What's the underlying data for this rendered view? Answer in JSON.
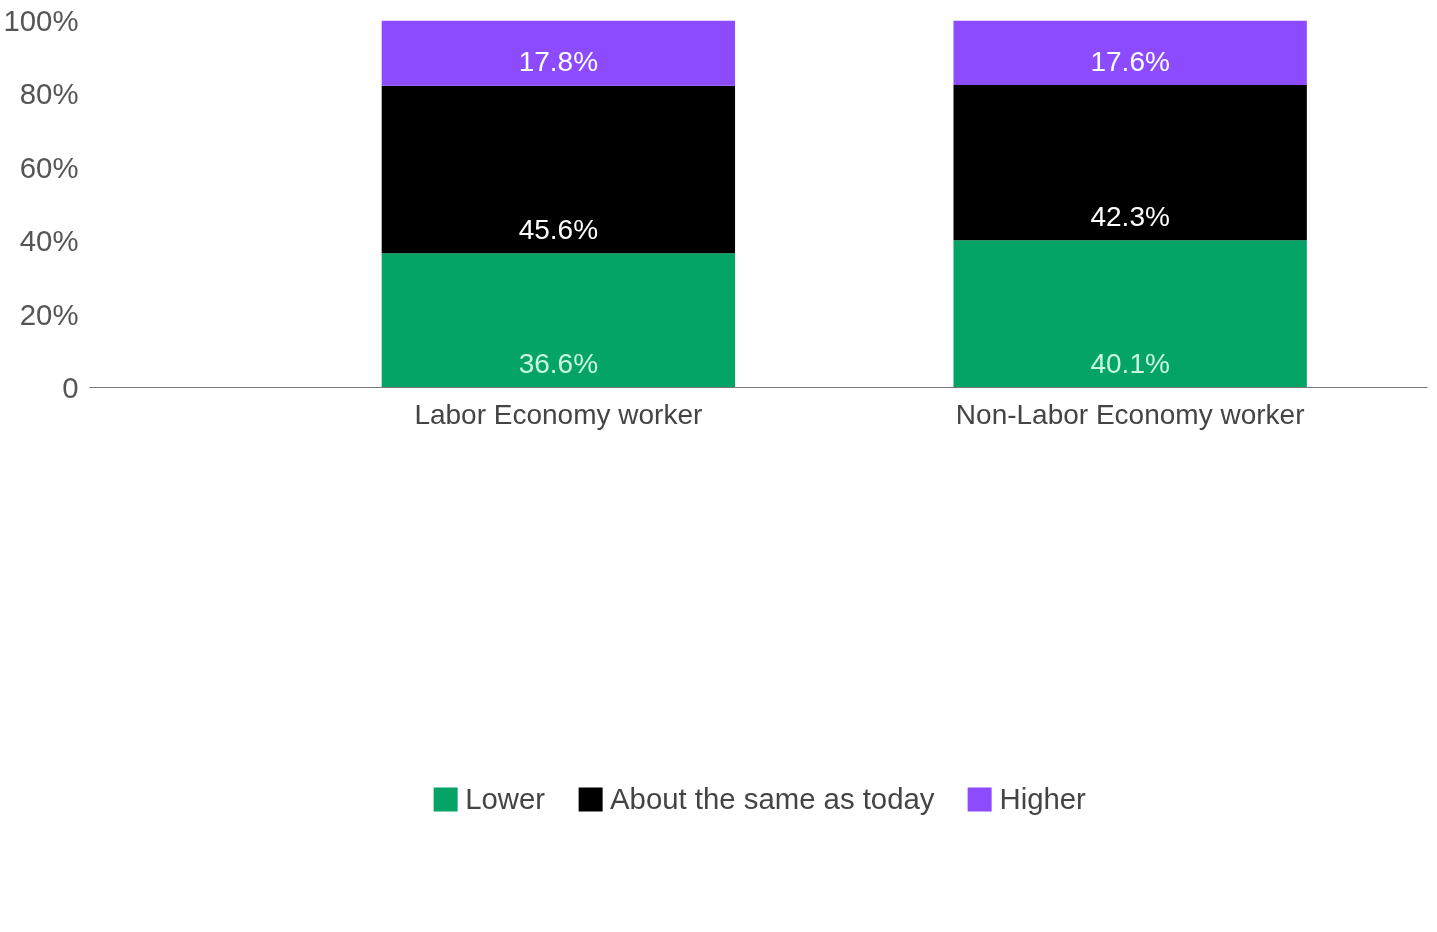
{
  "chart_data": {
    "type": "bar",
    "stacked": true,
    "categories": [
      "Labor Economy worker",
      "Non-Labor Economy worker"
    ],
    "series": [
      {
        "name": "Lower",
        "color": "#03a466",
        "values": [
          36.6,
          40.1
        ],
        "value_labels": [
          "36.6%",
          "40.1%"
        ]
      },
      {
        "name": "About the same as today",
        "color": "#000000",
        "values": [
          45.6,
          42.3
        ],
        "value_labels": [
          "45.6%",
          "42.3%"
        ]
      },
      {
        "name": "Higher",
        "color": "#8c4bff",
        "values": [
          17.8,
          17.6
        ],
        "value_labels": [
          "17.8%",
          "17.6%"
        ]
      }
    ],
    "ylim": [
      0,
      100
    ],
    "yticks": [
      0,
      {
        "value": 20,
        "label": "20%"
      },
      {
        "value": 40,
        "label": "40%"
      },
      {
        "value": 60,
        "label": "60%"
      },
      {
        "value": 80,
        "label": "80%"
      },
      {
        "value": 100,
        "label": "100%"
      }
    ],
    "grid": false,
    "legend": "bottom"
  }
}
